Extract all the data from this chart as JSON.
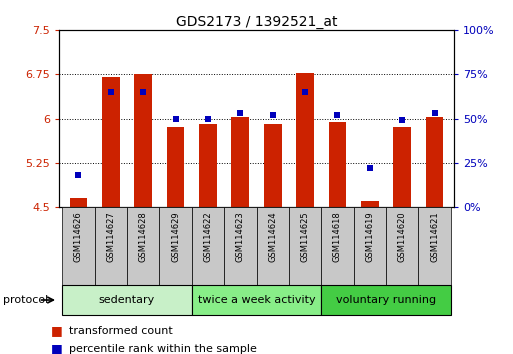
{
  "title": "GDS2173 / 1392521_at",
  "samples": [
    "GSM114626",
    "GSM114627",
    "GSM114628",
    "GSM114629",
    "GSM114622",
    "GSM114623",
    "GSM114624",
    "GSM114625",
    "GSM114618",
    "GSM114619",
    "GSM114620",
    "GSM114621"
  ],
  "red_values": [
    4.65,
    6.7,
    6.75,
    5.85,
    5.9,
    6.02,
    5.9,
    6.78,
    5.95,
    4.6,
    5.85,
    6.02
  ],
  "blue_values": [
    18,
    65,
    65,
    50,
    50,
    53,
    52,
    65,
    52,
    22,
    49,
    53
  ],
  "ylim_left": [
    4.5,
    7.5
  ],
  "ylim_right": [
    0,
    100
  ],
  "yticks_left": [
    4.5,
    5.25,
    6.0,
    6.75,
    7.5
  ],
  "ytick_labels_left": [
    "4.5",
    "5.25",
    "6",
    "6.75",
    "7.5"
  ],
  "yticks_right": [
    0,
    25,
    50,
    75,
    100
  ],
  "ytick_labels_right": [
    "0%",
    "25%",
    "50%",
    "75%",
    "100%"
  ],
  "hlines": [
    5.25,
    6.0,
    6.75
  ],
  "groups": [
    {
      "label": "sedentary",
      "start": 0,
      "end": 4,
      "color": "#c8f0c8"
    },
    {
      "label": "twice a week activity",
      "start": 4,
      "end": 8,
      "color": "#88ee88"
    },
    {
      "label": "voluntary running",
      "start": 8,
      "end": 12,
      "color": "#44cc44"
    }
  ],
  "bar_color": "#cc2200",
  "dot_color": "#0000bb",
  "bar_bottom": 4.5,
  "legend_items": [
    {
      "label": "transformed count",
      "color": "#cc2200"
    },
    {
      "label": "percentile rank within the sample",
      "color": "#0000bb"
    }
  ],
  "background_color": "#ffffff",
  "plot_bg": "#ffffff",
  "label_area_color": "#c8c8c8",
  "protocol_label": "protocol"
}
